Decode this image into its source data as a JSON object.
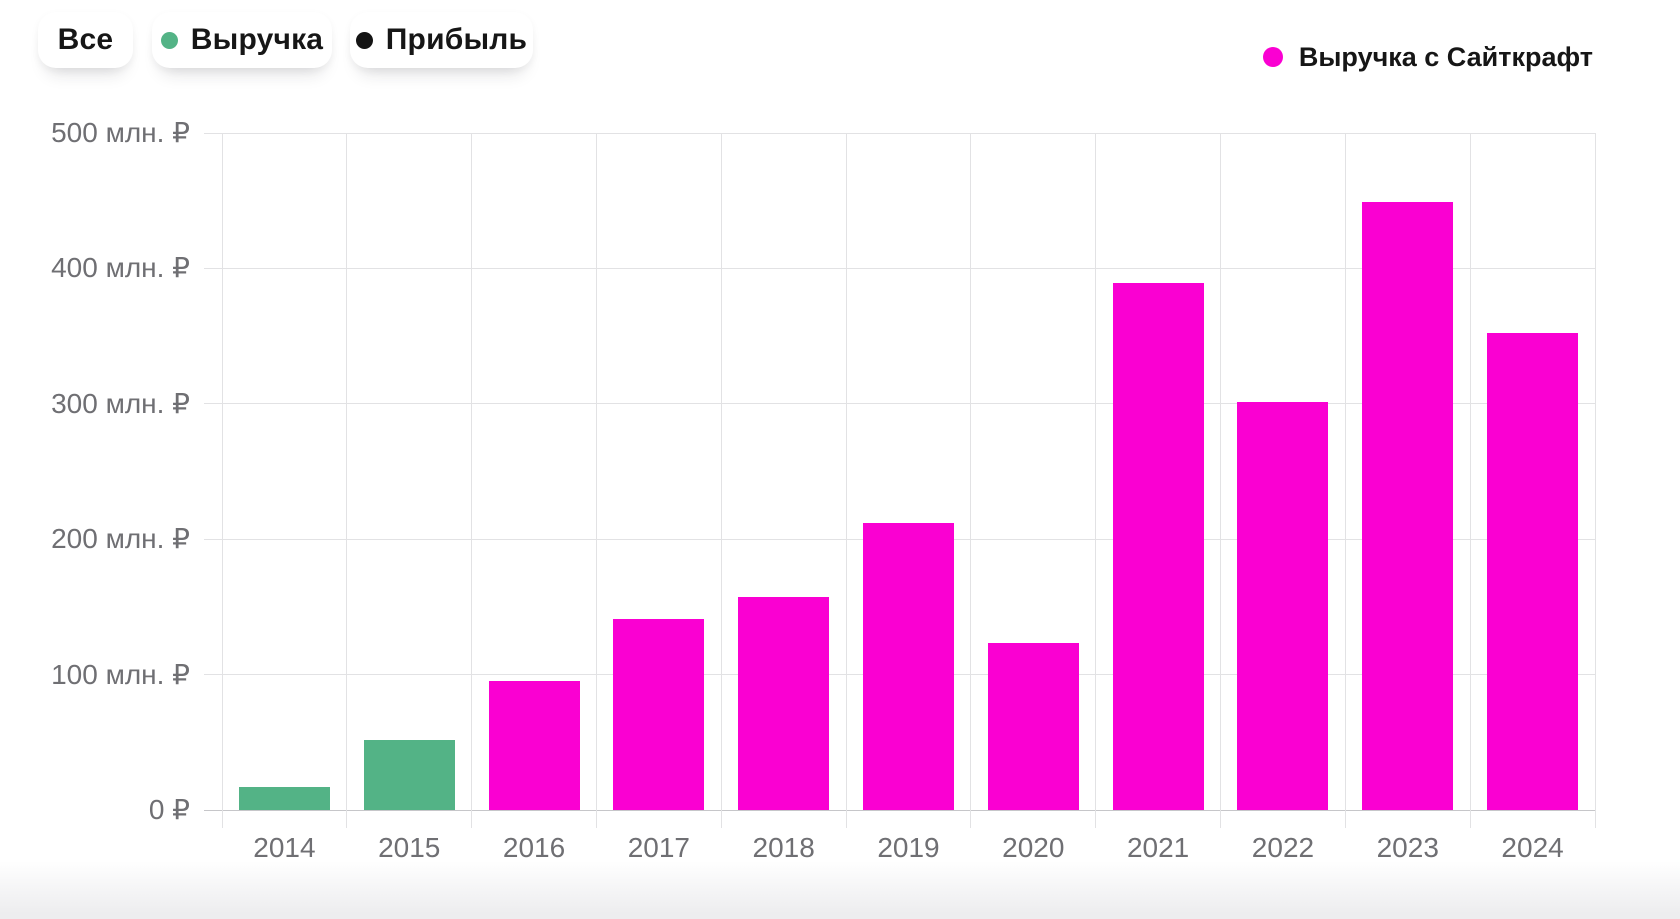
{
  "filters": {
    "all": {
      "label": "Все"
    },
    "revenue": {
      "label": "Выручка"
    },
    "profit": {
      "label": "Прибыль"
    }
  },
  "legend": {
    "label": "Выручка с Сайткрафт",
    "color_key": "sitecraft"
  },
  "colors": {
    "revenue": "#53b386",
    "profit": "#141414",
    "sitecraft": "#fa00d2",
    "grid": "#e2e2e4",
    "axis_line": "#c6c6c9",
    "axis_text": "#6f6f73"
  },
  "chart_data": {
    "type": "bar",
    "title": "",
    "xlabel": "",
    "ylabel": "",
    "units": "млн. ₽",
    "categories": [
      "2014",
      "2015",
      "2016",
      "2017",
      "2018",
      "2019",
      "2020",
      "2021",
      "2022",
      "2023",
      "2024"
    ],
    "series": [
      {
        "name": "Выручка с Сайткрафт",
        "values": [
          17,
          52,
          95,
          141,
          157,
          212,
          123,
          389,
          301,
          449,
          352
        ]
      }
    ],
    "bar_color_keys": [
      "revenue",
      "revenue",
      "sitecraft",
      "sitecraft",
      "sitecraft",
      "sitecraft",
      "sitecraft",
      "sitecraft",
      "sitecraft",
      "sitecraft",
      "sitecraft"
    ],
    "ylim": [
      0,
      500
    ],
    "yticks": [
      0,
      100,
      200,
      300,
      400,
      500
    ],
    "ytick_labels": [
      "0 ₽",
      "100 млн. ₽",
      "200 млн. ₽",
      "300 млн. ₽",
      "400 млн. ₽",
      "500 млн. ₽"
    ],
    "grid": true,
    "legend_position": "top-right"
  }
}
